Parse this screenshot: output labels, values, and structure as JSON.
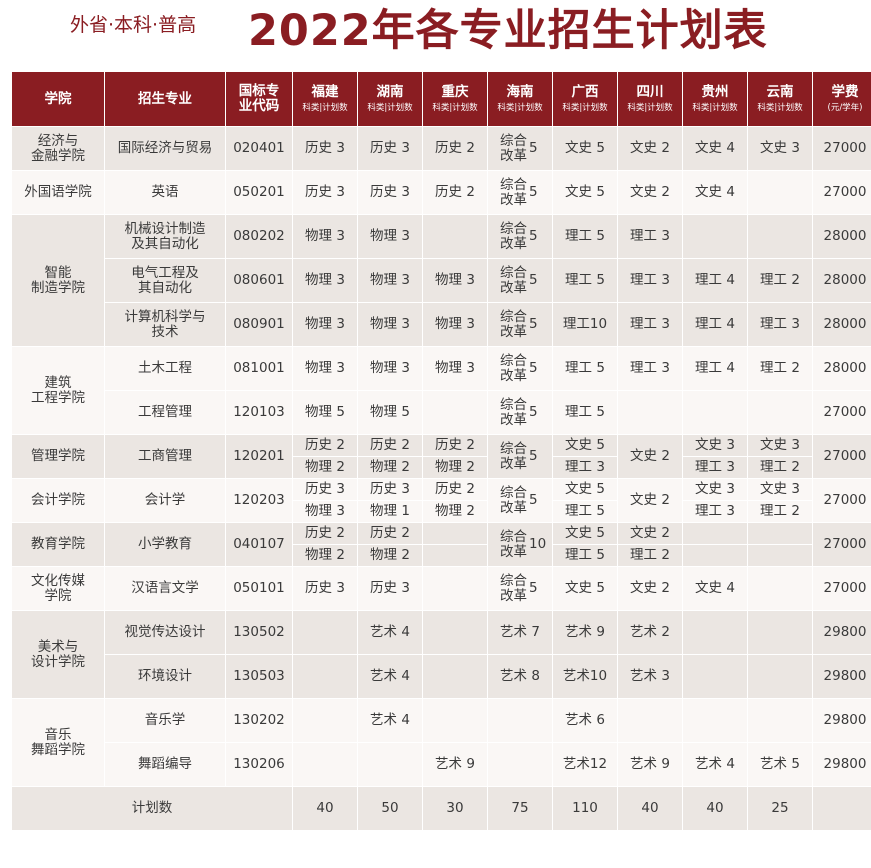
{
  "subtitle": "外省·本科·普高",
  "title": "2022年各专业招生计划表",
  "colors": {
    "accent": "#8a1d22",
    "row_gray": "#ebe6e2",
    "row_light": "#faf7f5"
  },
  "headers": {
    "college": "学院",
    "major": "招生专业",
    "code": "国标专\n业代码",
    "province_sub": "科类|计划数",
    "provinces": [
      "福建",
      "湖南",
      "重庆",
      "海南",
      "广西",
      "四川",
      "贵州",
      "云南"
    ],
    "fee": "学费",
    "fee_sub": "(元/学年)"
  },
  "colleges": [
    "经济与\n金融学院",
    "外国语学院",
    "智能\n制造学院",
    "建筑\n工程学院",
    "管理学院",
    "会计学院",
    "教育学院",
    "文化传媒\n学院",
    "美术与\n设计学院",
    "音乐\n舞蹈学院"
  ],
  "majors": [
    {
      "name": "国际经济与贸易",
      "code": "020401",
      "fee": "27000"
    },
    {
      "name": "英语",
      "code": "050201",
      "fee": "27000"
    },
    {
      "name": "机械设计制造\n及其自动化",
      "code": "080202",
      "fee": "28000"
    },
    {
      "name": "电气工程及\n其自动化",
      "code": "080601",
      "fee": "28000"
    },
    {
      "name": "计算机科学与\n技术",
      "code": "080901",
      "fee": "28000"
    },
    {
      "name": "土木工程",
      "code": "081001",
      "fee": "28000"
    },
    {
      "name": "工程管理",
      "code": "120103",
      "fee": "27000"
    },
    {
      "name": "工商管理",
      "code": "120201",
      "fee": "27000"
    },
    {
      "name": "会计学",
      "code": "120203",
      "fee": "27000"
    },
    {
      "name": "小学教育",
      "code": "040107",
      "fee": "27000"
    },
    {
      "name": "汉语言文学",
      "code": "050101",
      "fee": "27000"
    },
    {
      "name": "视觉传达设计",
      "code": "130502",
      "fee": "29800"
    },
    {
      "name": "环境设计",
      "code": "130503",
      "fee": "29800"
    },
    {
      "name": "音乐学",
      "code": "130202",
      "fee": "29800"
    },
    {
      "name": "舞蹈编导",
      "code": "130206",
      "fee": "29800"
    }
  ],
  "plans": {
    "r0": [
      "历史 3",
      "历史 3",
      "历史 2",
      "",
      "文史 5",
      "文史 2",
      "文史 4",
      "文史 3"
    ],
    "r1": [
      "历史 3",
      "历史 3",
      "历史 2",
      "",
      "文史 5",
      "文史 2",
      "文史 4",
      ""
    ],
    "r2": [
      "物理 3",
      "物理 3",
      "",
      "",
      "理工 5",
      "理工 3",
      "",
      ""
    ],
    "r3": [
      "物理 3",
      "物理 3",
      "物理 3",
      "",
      "理工 5",
      "理工 3",
      "理工 4",
      "理工 2"
    ],
    "r4": [
      "物理 3",
      "物理 3",
      "物理 3",
      "",
      "理工10",
      "理工 3",
      "理工 4",
      "理工 3"
    ],
    "r5": [
      "物理 3",
      "物理 3",
      "物理 3",
      "",
      "理工 5",
      "理工 3",
      "理工 4",
      "理工 2"
    ],
    "r6": [
      "物理 5",
      "物理 5",
      "",
      "",
      "理工 5",
      "",
      "",
      ""
    ],
    "r7a": [
      "历史 2",
      "历史 2",
      "历史 2",
      "",
      "文史 5",
      "文史 2",
      "文史 3",
      "文史 3"
    ],
    "r7b": [
      "物理 2",
      "物理 2",
      "物理 2",
      "",
      "理工 3",
      "",
      "理工 3",
      "理工 2"
    ],
    "r8a": [
      "历史 3",
      "历史 3",
      "历史 2",
      "",
      "文史 5",
      "文史 2",
      "文史 3",
      "文史 3"
    ],
    "r8b": [
      "物理 3",
      "物理 1",
      "物理 2",
      "",
      "理工 5",
      "",
      "理工 3",
      "理工 2"
    ],
    "r9a": [
      "历史 2",
      "历史 2",
      "",
      "",
      "文史 5",
      "文史 2",
      "",
      ""
    ],
    "r9b": [
      "物理 2",
      "物理 2",
      "",
      "",
      "理工 5",
      "理工 2",
      "",
      ""
    ],
    "r10": [
      "历史 3",
      "历史 3",
      "",
      "",
      "文史 5",
      "文史 2",
      "文史 4",
      ""
    ],
    "r11": [
      "",
      "艺术 4",
      "",
      "艺术 7",
      "艺术 9",
      "艺术 2",
      "",
      ""
    ],
    "r12": [
      "",
      "艺术 4",
      "",
      "艺术 8",
      "艺术10",
      "艺术 3",
      "",
      ""
    ],
    "r13": [
      "",
      "艺术 4",
      "",
      "",
      "艺术 6",
      "",
      "",
      ""
    ],
    "r14": [
      "",
      "",
      "艺术 9",
      "",
      "艺术12",
      "艺术 9",
      "艺术 4",
      "艺术 5"
    ]
  },
  "hainan": {
    "label": "综合\n改革",
    "counts": [
      "5",
      "5",
      "5",
      "5",
      "5",
      "5",
      "5",
      "5",
      "5",
      "10",
      "5"
    ]
  },
  "totals": {
    "label": "计划数",
    "values": [
      "40",
      "50",
      "30",
      "75",
      "110",
      "40",
      "40",
      "25",
      ""
    ]
  }
}
